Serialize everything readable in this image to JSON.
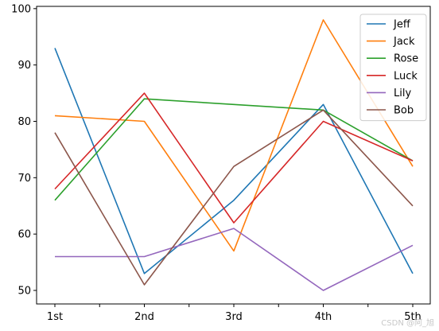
{
  "chart_data": {
    "type": "line",
    "categories": [
      "1st",
      "2nd",
      "3rd",
      "4th",
      "5th"
    ],
    "ylim": [
      47.6,
      100.4
    ],
    "yticks": [
      50,
      60,
      70,
      80,
      90,
      100
    ],
    "grid": false,
    "legend_position": "top-right",
    "series": [
      {
        "name": "Jeff",
        "color": "#1f77b4",
        "values": [
          93,
          53,
          66,
          83,
          53
        ]
      },
      {
        "name": "Jack",
        "color": "#ff7f0e",
        "values": [
          81,
          80,
          57,
          98,
          72
        ]
      },
      {
        "name": "Rose",
        "color": "#2ca02c",
        "values": [
          66,
          84,
          83,
          82,
          73
        ]
      },
      {
        "name": "Luck",
        "color": "#d62728",
        "values": [
          68,
          85,
          62,
          80,
          73
        ]
      },
      {
        "name": "Lily",
        "color": "#9467bd",
        "values": [
          56,
          56,
          61,
          50,
          58
        ]
      },
      {
        "name": "Bob",
        "color": "#8c564b",
        "values": [
          78,
          51,
          72,
          82,
          65
        ]
      }
    ]
  },
  "watermark": "CSDN @阿_旭"
}
